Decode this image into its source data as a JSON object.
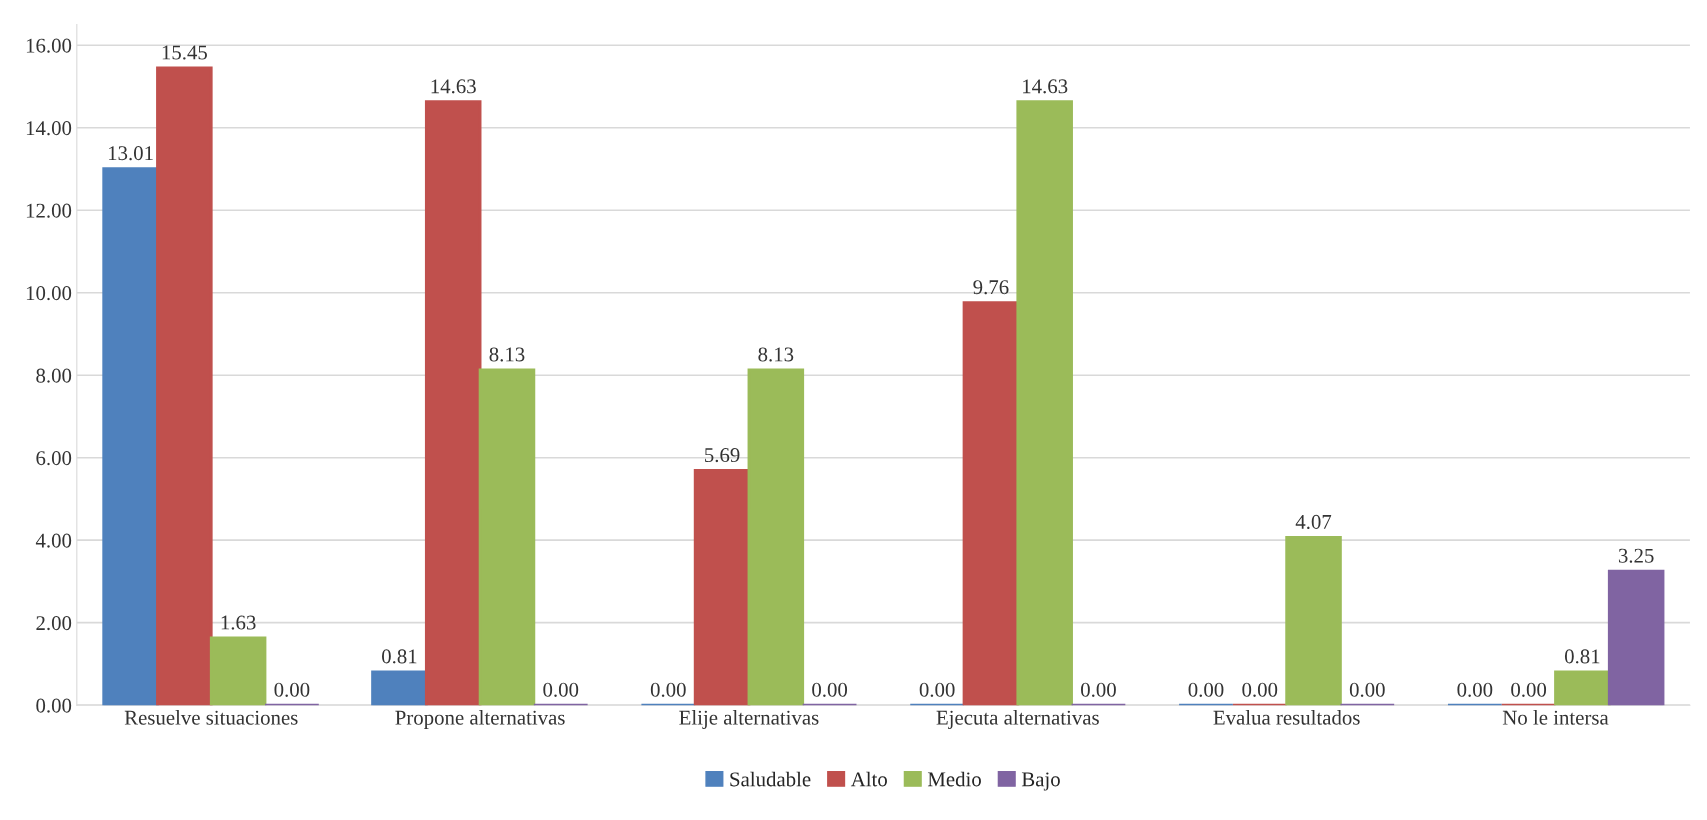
{
  "chart_data": {
    "type": "bar",
    "categories": [
      "Resuelve situaciones",
      "Propone alternativas",
      "Elije alternativas",
      "Ejecuta alternativas",
      "Evalua resultados",
      "No le intersa"
    ],
    "series": [
      {
        "name": "Saludable",
        "color": "#4f81bd",
        "values": [
          13.01,
          0.81,
          0,
          0,
          0,
          0
        ],
        "value_labels": [
          "13.01",
          "0.81",
          "0.00",
          "0.00",
          "0.00",
          "0.00"
        ]
      },
      {
        "name": "Alto",
        "color": "#c0504d",
        "values": [
          15.45,
          14.63,
          5.69,
          9.76,
          0,
          0
        ],
        "value_labels": [
          "15.45",
          "14.63",
          "5.69",
          "9.76",
          "0.00",
          "0.00"
        ]
      },
      {
        "name": "Medio",
        "color": "#9bbb59",
        "values": [
          1.63,
          8.13,
          8.13,
          14.63,
          4.07,
          0.81
        ],
        "value_labels": [
          "1.63",
          "8.13",
          "8.13",
          "14.63",
          "4.07",
          "0.81"
        ]
      },
      {
        "name": "Bajo",
        "color": "#8064a2",
        "values": [
          0,
          0,
          0,
          0,
          0,
          3.25
        ],
        "value_labels": [
          "0.00",
          "0.00",
          "0.00",
          "0.00",
          "0.00",
          "3.25"
        ]
      }
    ],
    "ylim": [
      0,
      16.5
    ],
    "yticks": [
      {
        "value": 0,
        "label": "0.00"
      },
      {
        "value": 2,
        "label": "2.00"
      },
      {
        "value": 4,
        "label": "4.00"
      },
      {
        "value": 6,
        "label": "6.00"
      },
      {
        "value": 8,
        "label": "8.00"
      },
      {
        "value": 10,
        "label": "10.00"
      },
      {
        "value": 12,
        "label": "12.00"
      },
      {
        "value": 14,
        "label": "14.00"
      },
      {
        "value": 16,
        "label": "16.00"
      }
    ],
    "grid": "y",
    "legend": "bottom"
  }
}
